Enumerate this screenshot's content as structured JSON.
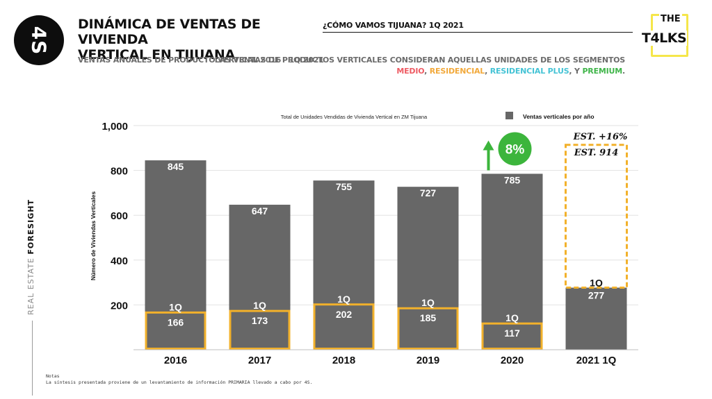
{
  "header": {
    "logo_text": "4S",
    "title_line1": "DINÁMICA DE VENTAS DE VIVIENDA",
    "title_line2": "VERTICAL EN TIJUANA",
    "subtitle": "VENTAS ANUALES DE PRODUCTO VERTICAL 2016 - 1Q 2021",
    "question": "¿CÓMO VAMOS TIJUANA? 1Q 2021",
    "note_line1": "LAS VENTAS DE PRODUCTOS VERTICALES CONSIDERAN AQUELLAS UNIDADES DE LOS SEGMENTOS",
    "segments": [
      {
        "label": "MEDIO",
        "color": "#ee5b63"
      },
      {
        "label": "RESIDENCIAL",
        "color": "#f2a93b"
      },
      {
        "label": "RESIDENCIAL PLUS",
        "color": "#45c3d5"
      },
      {
        "label": "PREMIUM",
        "color": "#3fb549"
      }
    ],
    "sep_comma": ", ",
    "sep_and": ", Y ",
    "sep_end": ".",
    "brand_the": "THE",
    "brand_talks": "T4LKS"
  },
  "side": {
    "part1": "REAL ESTATE",
    "part2": "FORESIGHT"
  },
  "notes": {
    "title": "Notas",
    "text": "La síntesis presentada proviene de un levantamiento de información PRIMARIA llevado a cabo por 4S."
  },
  "colors": {
    "bar": "#676767",
    "highlight": "#f2b12b",
    "growth": "#3cb53c"
  },
  "chart_data": {
    "type": "bar",
    "title": "Total de Unidades Vendidas de Vivienda Vertical en ZM Tijuana",
    "ylabel": "Número de Viviendas Verticales",
    "ylim": [
      0,
      1000
    ],
    "yticks": [
      200,
      400,
      600,
      800,
      1000
    ],
    "ytick_labels": [
      "200",
      "400",
      "600",
      "800",
      "1,000"
    ],
    "legend": {
      "label": "Ventas verticales por año",
      "position": "top-right"
    },
    "categories": [
      "2016",
      "2017",
      "2018",
      "2019",
      "2020",
      "2021 1Q"
    ],
    "values": [
      845,
      647,
      755,
      727,
      785,
      277
    ],
    "q1_label": "1Q",
    "q1_values": [
      166,
      173,
      202,
      185,
      117,
      277
    ],
    "growth": {
      "label": "8%",
      "category": "2020"
    },
    "estimate": {
      "category": "2021 1Q",
      "change_label": "EST. +16%",
      "value_label": "EST. 914",
      "value": 914
    }
  }
}
